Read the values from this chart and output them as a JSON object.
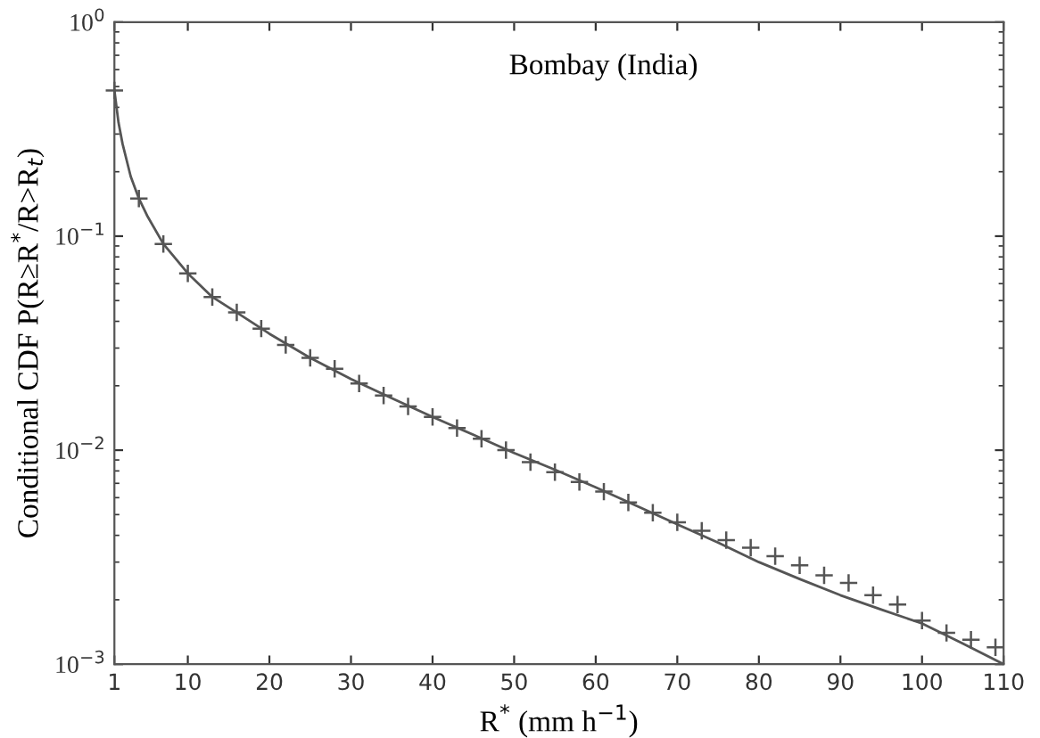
{
  "chart_data": {
    "type": "scatter",
    "xlabel": "R$^{*}$ (mm h$^{−1}$)",
    "ylabel": "Conditional CDF P(R≥R$^{*}$/R>R$_{t}$)",
    "annotations": [
      "Bombay (India)"
    ],
    "log": "y",
    "xlim": [
      1,
      110
    ],
    "xticks": [
      1,
      10,
      20,
      30,
      40,
      50,
      60,
      70,
      80,
      90,
      100,
      110
    ],
    "ylim": [
      0.001,
      1
    ],
    "yticks": [
      {
        "value": 0.001,
        "label": "10$^{−3}$"
      },
      {
        "value": 0.01,
        "label": "10$^{−2}$"
      },
      {
        "value": 0.1,
        "label": "10$^{−1}$"
      },
      {
        "value": 1,
        "label": "10$^{0}$"
      }
    ],
    "grid": false,
    "legend": false,
    "series": [
      {
        "marker": "cross",
        "color": "#555555",
        "x": [
          1,
          4,
          7,
          10,
          13,
          16,
          19,
          22,
          25,
          28,
          31,
          34,
          37,
          40,
          43,
          46,
          49,
          52,
          55,
          58,
          61,
          64,
          67,
          70,
          73,
          76,
          79,
          82,
          85,
          88,
          91,
          94,
          97,
          100,
          103,
          106,
          109
        ],
        "values": [
          0.48,
          0.15,
          0.092,
          0.067,
          0.052,
          0.044,
          0.037,
          0.031,
          0.027,
          0.024,
          0.0205,
          0.018,
          0.016,
          0.0143,
          0.0127,
          0.0113,
          0.01,
          0.0088,
          0.0079,
          0.0071,
          0.0064,
          0.0057,
          0.0051,
          0.0046,
          0.0042,
          0.0038,
          0.0035,
          0.0032,
          0.0029,
          0.0026,
          0.0024,
          0.0021,
          0.0019,
          0.0016,
          0.0014,
          0.0013,
          0.0012
        ]
      },
      {
        "type": "line",
        "line_style": "solid",
        "color": "#555555",
        "x": [
          1,
          1.5,
          2,
          3,
          4,
          5,
          7,
          10,
          13,
          16,
          20,
          25,
          30,
          35,
          40,
          45,
          50,
          55,
          60,
          65,
          70,
          75,
          80,
          85,
          90,
          95,
          100,
          105,
          110
        ],
        "values": [
          0.48,
          0.34,
          0.27,
          0.19,
          0.15,
          0.125,
          0.092,
          0.067,
          0.052,
          0.044,
          0.035,
          0.027,
          0.0215,
          0.0175,
          0.0143,
          0.0118,
          0.0097,
          0.0081,
          0.0067,
          0.0055,
          0.0045,
          0.0037,
          0.003,
          0.0025,
          0.0021,
          0.0018,
          0.00155,
          0.00125,
          0.001
        ]
      }
    ]
  }
}
